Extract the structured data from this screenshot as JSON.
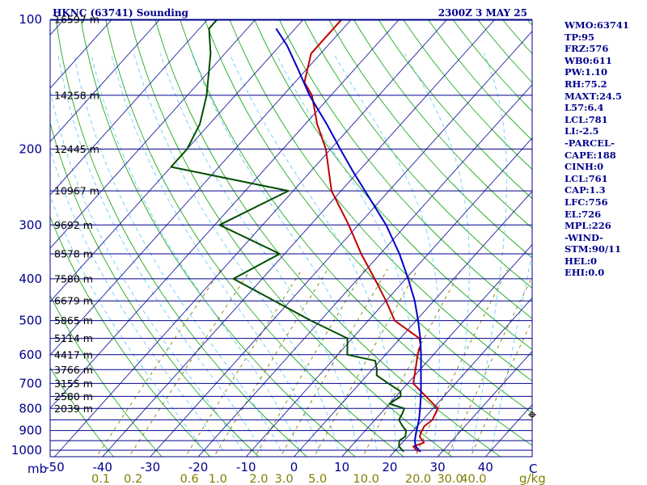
{
  "header": {
    "station": "HKNC (63741) Sounding",
    "time": "2300Z  3 MAY 25"
  },
  "stats": [
    "WMO:63741",
    "TP:95",
    "FRZ:576",
    "WB0:611",
    "PW:1.10",
    "RH:75.2",
    "MAXT:24.5",
    "L57:6.4",
    "LCL:781",
    "LI:-2.5",
    "-PARCEL-",
    "CAPE:188",
    "CINH:0",
    "LCL:761",
    "CAP:1.3",
    "LFC:756",
    "EL:726",
    "MPL:226",
    "-WIND-",
    "STM:90/11",
    "HEL:0",
    "EHI:0.0"
  ],
  "chart_data": {
    "type": "line",
    "title": "HKNC (63741) Sounding",
    "subtitle": "2300Z  3 MAY 25",
    "xlabel": "C",
    "ylabel": "mb",
    "xlim": [
      -50,
      50
    ],
    "ylim": [
      1000,
      100
    ],
    "y_scale": "log",
    "mixing_ratio_unit": "g/kg",
    "pressure_ticks": [
      100,
      200,
      300,
      400,
      500,
      600,
      700,
      800,
      900,
      1000
    ],
    "temperature_ticks": [
      "-50",
      "-40",
      "-30",
      "-20",
      "-10",
      "0",
      "10",
      "20",
      "30",
      "40"
    ],
    "mixing_ratio_ticks": [
      "0.1",
      "0.2",
      "0.6",
      "1.0",
      "2.0",
      "3.0",
      "5.0",
      "10.0",
      "20.0",
      "30.0",
      "40.0"
    ],
    "height_labels": [
      {
        "p": 100,
        "label": "16597 m"
      },
      {
        "p": 150,
        "label": "14258 m"
      },
      {
        "p": 200,
        "label": "12445 m"
      },
      {
        "p": 250,
        "label": "10967 m"
      },
      {
        "p": 300,
        "label": "9692 m"
      },
      {
        "p": 350,
        "label": "8578 m"
      },
      {
        "p": 400,
        "label": "7580 m"
      },
      {
        "p": 450,
        "label": "6679 m"
      },
      {
        "p": 500,
        "label": "5865 m"
      },
      {
        "p": 550,
        "label": "5114 m"
      },
      {
        "p": 600,
        "label": "4417 m"
      },
      {
        "p": 650,
        "label": "3766 m"
      },
      {
        "p": 700,
        "label": "3155 m"
      },
      {
        "p": 750,
        "label": "2580 m"
      },
      {
        "p": 800,
        "label": "2039 m"
      }
    ],
    "grid": true,
    "series": [
      {
        "name": "temperature",
        "color": "#c00000",
        "points": [
          [
            1008,
            25.0
          ],
          [
            980,
            23.0
          ],
          [
            960,
            24.5
          ],
          [
            930,
            22.5
          ],
          [
            910,
            22.0
          ],
          [
            880,
            21.5
          ],
          [
            850,
            22.0
          ],
          [
            800,
            21.0
          ],
          [
            700,
            11.2
          ],
          [
            660,
            9.5
          ],
          [
            600,
            6.7
          ],
          [
            570,
            5.5
          ],
          [
            550,
            4.0
          ],
          [
            500,
            -4.5
          ],
          [
            450,
            -10.0
          ],
          [
            400,
            -16.5
          ],
          [
            350,
            -24.0
          ],
          [
            300,
            -32.0
          ],
          [
            250,
            -42.0
          ],
          [
            200,
            -51.0
          ],
          [
            175,
            -57.5
          ],
          [
            150,
            -64.0
          ],
          [
            140,
            -68.0
          ],
          [
            120,
            -72.0
          ],
          [
            110,
            -72.0
          ],
          [
            100,
            -72.0
          ]
        ]
      },
      {
        "name": "dewpoint",
        "color": "#004d00",
        "points": [
          [
            1008,
            22.0
          ],
          [
            980,
            20.0
          ],
          [
            950,
            19.0
          ],
          [
            930,
            19.5
          ],
          [
            900,
            18.5
          ],
          [
            880,
            17.0
          ],
          [
            850,
            15.0
          ],
          [
            820,
            14.5
          ],
          [
            800,
            14.0
          ],
          [
            780,
            10.0
          ],
          [
            750,
            11.0
          ],
          [
            730,
            10.0
          ],
          [
            700,
            6.0
          ],
          [
            670,
            2.0
          ],
          [
            650,
            1.0
          ],
          [
            620,
            -1.0
          ],
          [
            600,
            -8.0
          ],
          [
            550,
            -11.0
          ],
          [
            500,
            -22.0
          ],
          [
            400,
            -46.0
          ],
          [
            350,
            -41.0
          ],
          [
            300,
            -59.0
          ],
          [
            250,
            -51.0
          ],
          [
            220,
            -80.0
          ],
          [
            200,
            -80.0
          ],
          [
            175,
            -82.0
          ],
          [
            150,
            -86.0
          ],
          [
            120,
            -93.0
          ],
          [
            105,
            -98.0
          ],
          [
            100,
            -98.0
          ]
        ]
      },
      {
        "name": "parcel",
        "color": "#0000c8",
        "points": [
          [
            1008,
            25.5
          ],
          [
            980,
            23.5
          ],
          [
            950,
            22.2
          ],
          [
            900,
            20.7
          ],
          [
            850,
            19.2
          ],
          [
            800,
            17.3
          ],
          [
            750,
            15.2
          ],
          [
            700,
            12.8
          ],
          [
            650,
            10.2
          ],
          [
            600,
            7.4
          ],
          [
            550,
            4.2
          ],
          [
            500,
            0.4
          ],
          [
            450,
            -4.0
          ],
          [
            400,
            -9.5
          ],
          [
            350,
            -16.0
          ],
          [
            300,
            -24.2
          ],
          [
            250,
            -35.0
          ],
          [
            226,
            -41.0
          ],
          [
            200,
            -48.0
          ],
          [
            175,
            -55.5
          ],
          [
            150,
            -64.5
          ],
          [
            130,
            -72.0
          ],
          [
            115,
            -78.5
          ],
          [
            105,
            -84.0
          ]
        ]
      }
    ]
  },
  "colors": {
    "isobar": "#00008b",
    "isotherm": "#1f1fa0",
    "dry_adiabat": "#1faa1f",
    "moist_adiabat": "#66ccff",
    "mixing_ratio": "#808000",
    "temperature": "#c00000",
    "dewpoint": "#004d00",
    "parcel": "#0000c8"
  }
}
